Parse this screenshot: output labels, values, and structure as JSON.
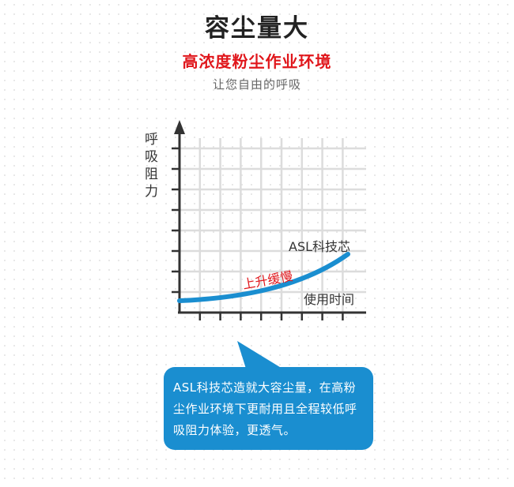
{
  "title": "容尘量大",
  "subtitle": "高浓度粉尘作业环境",
  "tagline": "让您自由的呼吸",
  "chart": {
    "y_label": "呼吸阻力",
    "x_label": "使用时间",
    "series_label": "ASL科技芯",
    "annotation": "上升缓慢",
    "line_color": "#1a8ed0",
    "annotation_color": "#e0161b"
  },
  "callout": {
    "text": "ASL科技芯造就大容尘量，在高粉尘作业环境下更耐用且全程较低呼吸阻力体验，更透气。",
    "color": "#1a8ed0"
  }
}
